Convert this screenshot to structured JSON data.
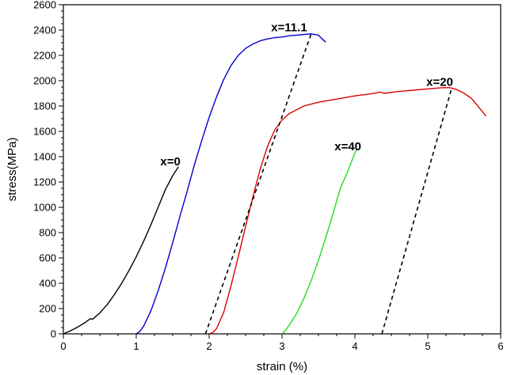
{
  "chart_data": {
    "type": "line",
    "title": "",
    "xlabel": "strain (%)",
    "ylabel": "stress(MPa)",
    "xlim": [
      0,
      6
    ],
    "ylim": [
      0,
      2600
    ],
    "xticks": [
      0,
      1,
      2,
      3,
      4,
      5,
      6
    ],
    "yticks": [
      0,
      200,
      400,
      600,
      800,
      1000,
      1200,
      1400,
      1600,
      1800,
      2000,
      2200,
      2400,
      2600
    ],
    "grid": false,
    "legend": "none",
    "series": [
      {
        "color": "#000000",
        "style": "solid",
        "x": [
          0,
          0.1,
          0.2,
          0.3,
          0.37,
          0.4,
          0.43,
          0.5,
          0.6,
          0.7,
          0.8,
          0.9,
          1.0,
          1.1,
          1.2,
          1.3,
          1.4,
          1.5,
          1.58
        ],
        "y": [
          0,
          25,
          55,
          90,
          120,
          115,
          130,
          165,
          230,
          310,
          400,
          500,
          610,
          730,
          860,
          1000,
          1140,
          1250,
          1320
        ]
      },
      {
        "color": "#0000cc",
        "style": "solid",
        "x": [
          1.0,
          1.05,
          1.1,
          1.2,
          1.3,
          1.4,
          1.5,
          1.6,
          1.7,
          1.8,
          1.9,
          2.0,
          2.1,
          2.2,
          2.3,
          2.4,
          2.5,
          2.6,
          2.7,
          2.8,
          2.9,
          3.0,
          3.1,
          3.2,
          3.3,
          3.4,
          3.5,
          3.55,
          3.6
        ],
        "y": [
          0,
          20,
          60,
          180,
          340,
          520,
          720,
          930,
          1130,
          1340,
          1530,
          1710,
          1870,
          2010,
          2120,
          2200,
          2255,
          2290,
          2315,
          2330,
          2340,
          2345,
          2355,
          2360,
          2365,
          2370,
          2360,
          2330,
          2305
        ]
      },
      {
        "color": "#dd0000",
        "style": "solid",
        "x": [
          2.0,
          2.05,
          2.1,
          2.2,
          2.3,
          2.4,
          2.5,
          2.6,
          2.7,
          2.8,
          2.9,
          3.0,
          3.1,
          3.2,
          3.3,
          3.5,
          3.8,
          4.0,
          4.2,
          4.35,
          4.4,
          4.6,
          4.8,
          5.0,
          5.2,
          5.3,
          5.4,
          5.5,
          5.6,
          5.7,
          5.8
        ],
        "y": [
          0,
          10,
          40,
          170,
          380,
          610,
          850,
          1080,
          1300,
          1480,
          1610,
          1690,
          1740,
          1770,
          1800,
          1830,
          1860,
          1880,
          1895,
          1910,
          1900,
          1915,
          1925,
          1935,
          1945,
          1945,
          1930,
          1900,
          1860,
          1790,
          1720
        ]
      },
      {
        "color": "#22dd22",
        "style": "solid",
        "x": [
          3.0,
          3.05,
          3.1,
          3.2,
          3.3,
          3.4,
          3.5,
          3.6,
          3.7,
          3.8,
          3.9,
          4.0,
          4.03
        ],
        "y": [
          0,
          30,
          70,
          160,
          280,
          420,
          580,
          760,
          950,
          1150,
          1280,
          1430,
          1460
        ]
      },
      {
        "color": "#000000",
        "style": "dashed",
        "x": [
          1.95,
          3.4
        ],
        "y": [
          0,
          2370
        ]
      },
      {
        "color": "#000000",
        "style": "dashed",
        "x": [
          4.37,
          5.33
        ],
        "y": [
          0,
          1945
        ]
      }
    ],
    "annotations": [
      {
        "text": "x=0",
        "x": 1.33,
        "y": 1330
      },
      {
        "text": "x=11.1",
        "x": 2.85,
        "y": 2390
      },
      {
        "text": "x=20",
        "x": 4.98,
        "y": 1960
      },
      {
        "text": "x=40",
        "x": 3.72,
        "y": 1450
      }
    ]
  }
}
